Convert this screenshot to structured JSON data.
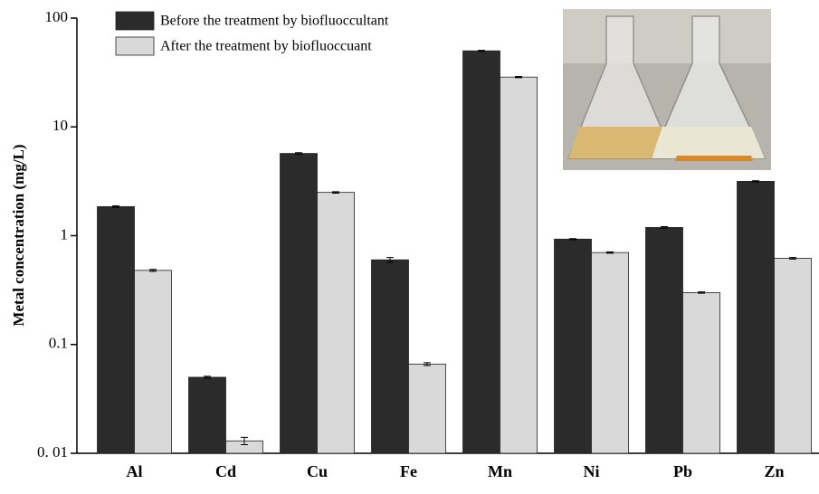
{
  "chart_data": {
    "type": "bar",
    "log_scale": true,
    "ylabel": "Metal concentration (mg/L)",
    "categories": [
      "Al",
      "Cd",
      "Cu",
      "Fe",
      "Mn",
      "Ni",
      "Pb",
      "Zn"
    ],
    "series": [
      {
        "name": "Before the treatment by biofluoccultant",
        "color": "#2b2b2b",
        "values": [
          1.85,
          0.05,
          5.7,
          0.6,
          50,
          0.93,
          1.19,
          3.16
        ],
        "errors": [
          0.03,
          0.001,
          0.1,
          0.03,
          0.5,
          0.01,
          0.02,
          0.04
        ]
      },
      {
        "name": "After the treatment by biofluoccuant",
        "color": "#d9d9d9",
        "values": [
          0.48,
          0.013,
          2.5,
          0.066,
          28.7,
          0.7,
          0.3,
          0.62
        ],
        "errors": [
          0.01,
          0.001,
          0.04,
          0.002,
          0.4,
          0.01,
          0.004,
          0.01
        ]
      }
    ],
    "ylim": [
      0.01,
      100
    ],
    "yticks": [
      {
        "value": 0.01,
        "label": "0. 01"
      },
      0.1,
      1,
      10,
      100
    ],
    "legend": "upper-left"
  }
}
